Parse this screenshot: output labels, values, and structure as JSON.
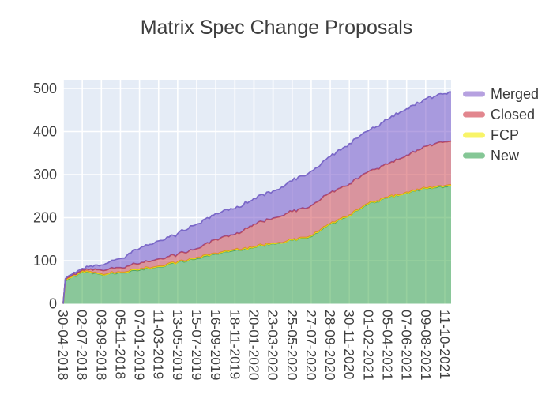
{
  "chart": {
    "colors": {
      "page_bg": "#ffffff",
      "plot_bg": "#e5ecf6",
      "grid": "#ffffff",
      "title_text": "#3d3d3d",
      "tick_text": "#3f3f3f",
      "legend_text": "#3a3a3a"
    }
  },
  "chart_data": {
    "type": "area",
    "stacked": true,
    "title": "Matrix Spec Change Proposals",
    "xlabel": "",
    "ylabel": "",
    "grid": true,
    "legend_position": "right",
    "legend_order_top_to_bottom": [
      "Merged",
      "Closed",
      "FCP",
      "New"
    ],
    "y_ticks": [
      0,
      100,
      200,
      300,
      400,
      500
    ],
    "y_range": [
      0,
      523
    ],
    "x_tick_labels": [
      "30-04-2018",
      "02-07-2018",
      "03-09-2018",
      "05-11-2018",
      "07-01-2019",
      "11-03-2019",
      "13-05-2019",
      "15-07-2019",
      "16-09-2019",
      "18-11-2019",
      "20-01-2020",
      "23-03-2020",
      "25-05-2020",
      "27-07-2020",
      "28-09-2020",
      "30-11-2020",
      "01-02-2021",
      "05-04-2021",
      "07-06-2021",
      "09-08-2021",
      "11-10-2021"
    ],
    "x_tick_interval_weeks": 9,
    "anchors_t_weeks": [
      0,
      1,
      9,
      18,
      27,
      36,
      45,
      54,
      63,
      72,
      81,
      90,
      99,
      108,
      117,
      126,
      135,
      144,
      153,
      162,
      171,
      180,
      183
    ],
    "series": [
      {
        "name": "New",
        "fill": "rgba(47,162,62,0.5)",
        "stroke": "#48a261",
        "legend_swatch": "#85c796",
        "values": [
          0,
          52,
          75,
          68,
          72,
          78,
          86,
          96,
          105,
          116,
          124,
          131,
          140,
          147,
          156,
          185,
          205,
          232,
          246,
          258,
          268,
          272,
          274
        ]
      },
      {
        "name": "FCP",
        "fill": "rgba(244,231,0,0.55)",
        "stroke": "#e8da12",
        "legend_swatch": "#f8f468",
        "values": [
          0,
          1,
          1,
          1,
          1,
          2,
          1,
          1,
          2,
          1,
          2,
          1,
          1,
          1,
          2,
          1,
          1,
          1,
          1,
          1,
          1,
          2,
          2
        ]
      },
      {
        "name": "Closed",
        "fill": "rgba(205,60,70,0.5)",
        "stroke": "#bf4d5a",
        "legend_swatch": "#e2868e",
        "values": [
          0,
          3,
          3,
          9,
          11,
          13,
          17,
          18,
          21,
          33,
          35,
          53,
          58,
          66,
          70,
          72,
          72,
          74,
          77,
          86,
          97,
          102,
          102
        ]
      },
      {
        "name": "Merged",
        "fill": "rgba(107,72,198,0.5)",
        "stroke": "#7a68c8",
        "legend_swatch": "#b6a1e0",
        "values": [
          0,
          2,
          3,
          12,
          21,
          35,
          42,
          48,
          57,
          60,
          60,
          60,
          63,
          71,
          80,
          84,
          94,
          95,
          104,
          108,
          110,
          112,
          114
        ]
      }
    ]
  }
}
